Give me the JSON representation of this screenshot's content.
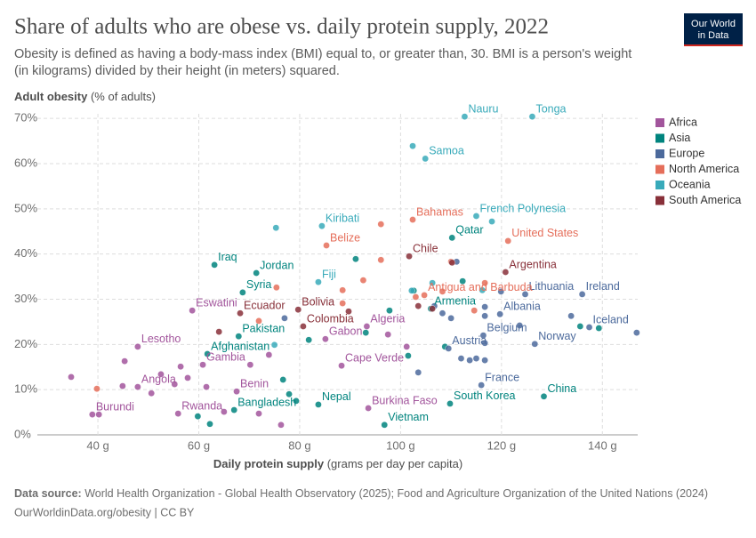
{
  "chart_data": {
    "type": "scatter",
    "title": "Share of adults who are obese vs. daily protein supply, 2022",
    "subtitle": [
      "Obesity is defined as having a body-mass index (BMI) equal to, or greater than, 30. BMI is a person's weight",
      "(in kilograms) divided by their height (in meters) squared."
    ],
    "y_label": "Adult obesity",
    "y_label_unit": "(% of adults)",
    "x_label": "Daily protein supply",
    "x_label_unit": "(grams per day per capita)",
    "source_label": "Data source:",
    "source": "World Health Organization - Global Health Observatory (2025); Food and Agriculture Organization of the United Nations (2024)",
    "url": "OurWorldinData.org/obesity | CC BY",
    "logo": [
      "Our World",
      "in Data"
    ],
    "xlim": [
      28,
      147
    ],
    "ylim": [
      0,
      72
    ],
    "xticks": [
      {
        "value": 40,
        "label": "40 g"
      },
      {
        "value": 60,
        "label": "60 g"
      },
      {
        "value": 80,
        "label": "80 g"
      },
      {
        "value": 100,
        "label": "100 g"
      },
      {
        "value": 120,
        "label": "120 g"
      },
      {
        "value": 140,
        "label": "140 g"
      }
    ],
    "yticks": [
      {
        "value": 0,
        "label": "0%"
      },
      {
        "value": 10,
        "label": "10%"
      },
      {
        "value": 20,
        "label": "20%"
      },
      {
        "value": 30,
        "label": "30%"
      },
      {
        "value": 40,
        "label": "40%"
      },
      {
        "value": 50,
        "label": "50%"
      },
      {
        "value": 60,
        "label": "60%"
      },
      {
        "value": 70,
        "label": "70%"
      }
    ],
    "grid": true,
    "legend": "right",
    "series": [
      {
        "name": "Africa",
        "color": "#a2559c",
        "x": [
          38.9,
          47.9,
          47.9,
          60.8,
          55.9,
          58.7,
          67.5,
          85.1,
          88.3,
          93.3,
          93.6,
          34.7,
          40.2,
          44.9,
          45.3,
          50.6,
          52.5,
          55.2,
          56.4,
          57.8,
          61.5,
          65.0,
          70.2,
          71.9,
          73.9,
          76.3,
          97.5,
          101.2
        ],
        "y": [
          4.5,
          19.5,
          10.6,
          15.5,
          4.7,
          27.5,
          9.6,
          21.2,
          15.3,
          24.0,
          5.9,
          12.8,
          4.5,
          10.8,
          16.3,
          9.2,
          13.4,
          11.2,
          15.1,
          12.6,
          10.6,
          5.1,
          15.5,
          4.7,
          17.7,
          2.2,
          22.2,
          19.5
        ],
        "labels": [
          "Burundi",
          "Lesotho",
          "Angola",
          "Gambia",
          "Rwanda",
          "Eswatini",
          "Benin",
          "Gabon",
          "Cape Verde",
          "Algeria",
          "Burkina Faso",
          null,
          null,
          null,
          null,
          null,
          null,
          null,
          null,
          null,
          null,
          null,
          null,
          null,
          null,
          null,
          null,
          null
        ]
      },
      {
        "name": "Asia",
        "color": "#00847e",
        "x": [
          63.1,
          71.4,
          68.7,
          67.9,
          61.7,
          67.0,
          83.7,
          96.8,
          106.0,
          110.2,
          109.8,
          128.4,
          59.8,
          62.2,
          76.7,
          77.9,
          79.3,
          81.8,
          91.1,
          93.1,
          97.8,
          102.6,
          101.5,
          108.8,
          112.3,
          135.6,
          139.3
        ],
        "y": [
          37.6,
          35.8,
          31.5,
          21.8,
          17.9,
          5.5,
          6.7,
          2.2,
          27.9,
          43.6,
          6.9,
          8.5,
          4.1,
          2.4,
          12.2,
          9.0,
          7.5,
          21.0,
          38.9,
          22.6,
          27.5,
          31.9,
          17.5,
          19.5,
          34.0,
          24.0,
          23.6
        ],
        "labels": [
          "Iraq",
          "Jordan",
          "Syria",
          "Pakistan",
          "Afghanistan",
          "Bangladesh",
          "Nepal",
          "Vietnam",
          "Armenia",
          "Qatar",
          "South Korea",
          "China",
          null,
          null,
          null,
          null,
          null,
          null,
          null,
          null,
          null,
          null,
          null,
          null,
          null,
          null,
          null
        ]
      },
      {
        "name": "Europe",
        "color": "#4c6a9c",
        "x": [
          124.7,
          136.0,
          119.7,
          116.4,
          126.6,
          137.4,
          109.5,
          116.0,
          77.0,
          103.5,
          106.7,
          108.3,
          110.0,
          111.1,
          112.0,
          113.7,
          115.0,
          116.7,
          116.7,
          116.7,
          116.7,
          119.9,
          123.6,
          133.8,
          146.8
        ],
        "y": [
          31.1,
          31.1,
          26.7,
          22.0,
          20.1,
          23.8,
          19.1,
          11.0,
          25.8,
          13.8,
          28.5,
          26.9,
          25.8,
          38.3,
          16.9,
          16.5,
          16.9,
          16.5,
          28.3,
          26.3,
          20.3,
          31.7,
          24.2,
          26.3,
          22.6
        ],
        "labels": [
          "Lithuania",
          "Ireland",
          "Albania",
          "Belgium",
          "Norway",
          "Iceland",
          "Austria",
          "France",
          null,
          null,
          null,
          null,
          null,
          null,
          null,
          null,
          null,
          null,
          null,
          null,
          null,
          null,
          null,
          null,
          null
        ]
      },
      {
        "name": "North America",
        "color": "#e56e5a",
        "x": [
          102.4,
          85.3,
          121.3,
          104.7,
          39.8,
          71.9,
          75.4,
          88.5,
          88.5,
          92.6,
          96.1,
          103.0,
          108.3,
          110.0,
          114.6,
          116.7,
          96.1
        ],
        "y": [
          47.6,
          41.9,
          42.9,
          30.9,
          10.2,
          25.2,
          32.6,
          32.0,
          29.1,
          34.2,
          38.7,
          30.5,
          31.7,
          38.3,
          27.5,
          33.6,
          46.6
        ],
        "labels": [
          "Bahamas",
          "Belize",
          "United States",
          "Antigua and Barbuda",
          null,
          null,
          null,
          null,
          null,
          null,
          null,
          null,
          null,
          null,
          null,
          null,
          null
        ]
      },
      {
        "name": "Oceania",
        "color": "#38aaba",
        "x": [
          112.7,
          126.1,
          104.9,
          115.0,
          84.4,
          83.7,
          75.3,
          75.0,
          102.4,
          102.2,
          106.3,
          116.2,
          118.1
        ],
        "y": [
          70.4,
          70.4,
          61.1,
          48.4,
          46.2,
          33.8,
          45.8,
          19.9,
          63.9,
          31.9,
          33.6,
          32.0,
          47.2
        ],
        "labels": [
          "Nauru",
          "Tonga",
          "Samoa",
          "French Polynesia",
          "Kiribati",
          "Fiji",
          null,
          null,
          null,
          null,
          null,
          null,
          null
        ]
      },
      {
        "name": "South America",
        "color": "#883039",
        "x": [
          101.7,
          120.8,
          68.2,
          79.7,
          80.7,
          64.0,
          89.7,
          103.5,
          106.3,
          110.2
        ],
        "y": [
          39.5,
          36.0,
          26.9,
          27.7,
          24.0,
          22.8,
          27.3,
          28.5,
          27.9,
          38.1
        ],
        "labels": [
          "Chile",
          "Argentina",
          "Ecuador",
          "Bolivia",
          "Colombia",
          null,
          null,
          null,
          null,
          null
        ]
      }
    ]
  }
}
